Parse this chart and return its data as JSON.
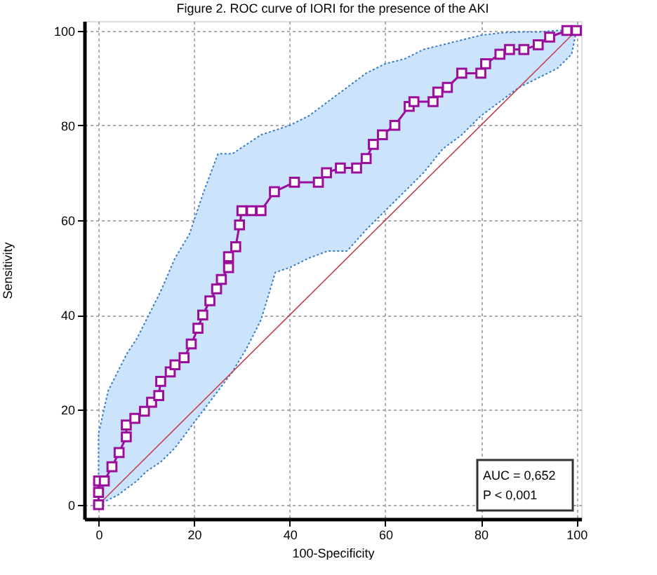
{
  "chart_data": {
    "type": "line",
    "title": "Figure 2. ROC curve of IORI for the presence of the AKI",
    "xlabel": "100-Specificity",
    "ylabel": "Sensitivity",
    "xlim": [
      -3,
      101
    ],
    "ylim": [
      -3,
      102
    ],
    "xticks": [
      0,
      20,
      40,
      60,
      80,
      100
    ],
    "yticks": [
      0,
      20,
      40,
      60,
      80,
      100
    ],
    "grid": true,
    "legend": false,
    "annotations": [
      "AUC = 0,652",
      "P < 0,001"
    ],
    "series": [
      {
        "type": "area",
        "color": "#cce4fb",
        "line_style": "dotted",
        "x": [
          0,
          2,
          4,
          6,
          8,
          10,
          13,
          16,
          19,
          22,
          25,
          28,
          31,
          34,
          37,
          40,
          44,
          48,
          52,
          56,
          60,
          64,
          68,
          72,
          76,
          80,
          84,
          88,
          92,
          96,
          99,
          100
        ],
        "values": [
          null,
          null,
          null,
          null,
          null,
          null,
          null,
          null,
          null,
          null,
          null,
          null,
          null,
          null,
          null,
          null,
          null,
          null,
          null,
          null,
          null,
          null,
          null,
          null,
          null,
          null,
          null,
          null,
          null,
          null,
          null,
          null
        ],
        "lower": [
          0,
          1,
          2,
          3.5,
          5,
          7,
          9,
          12,
          16,
          20,
          24,
          28,
          33,
          39,
          49,
          50,
          52,
          53.5,
          53.5,
          58,
          62,
          66,
          70,
          75,
          78,
          82,
          85,
          88,
          90,
          92,
          95,
          100
        ],
        "upper": [
          15,
          24,
          28,
          32,
          35,
          39,
          45,
          52,
          57,
          66,
          74,
          74,
          76,
          78,
          79,
          80,
          82,
          85,
          88,
          91,
          93,
          94,
          96,
          97,
          98,
          99,
          99.5,
          99.7,
          99.7,
          100,
          100,
          100
        ]
      },
      {
        "color": "#c04050",
        "marker": "none",
        "x": [
          0,
          100
        ],
        "values": [
          0,
          100
        ]
      },
      {
        "color": "#9b0e9b",
        "marker": "square",
        "x": [
          0,
          0,
          0,
          1.2,
          2.8,
          4.3,
          5.8,
          5.8,
          7.6,
          9.6,
          11.1,
          12.6,
          13,
          15,
          16,
          17.9,
          19.4,
          20.8,
          21.8,
          23.3,
          24.7,
          25.7,
          27.2,
          27.2,
          28.7,
          29.5,
          30,
          32,
          34,
          36.8,
          41,
          46,
          47.7,
          50.6,
          54,
          56,
          57.5,
          59.4,
          62,
          65,
          66,
          70,
          71,
          73,
          76,
          80,
          81,
          84,
          86,
          89,
          92,
          94.4,
          98,
          100
        ],
        "values": [
          0,
          2.6,
          5,
          5,
          8,
          11,
          14.3,
          16.8,
          18.2,
          19.7,
          21.6,
          23,
          26,
          28,
          29.5,
          31,
          33.9,
          37.2,
          40,
          43,
          45.5,
          47.5,
          50,
          52.3,
          54.4,
          59,
          62,
          62,
          62,
          66,
          68,
          68,
          70,
          71,
          71,
          73,
          76,
          78,
          80,
          84,
          85,
          85,
          87,
          88,
          91,
          91,
          93,
          95,
          96,
          96,
          97,
          98.6,
          100,
          100
        ]
      }
    ]
  }
}
